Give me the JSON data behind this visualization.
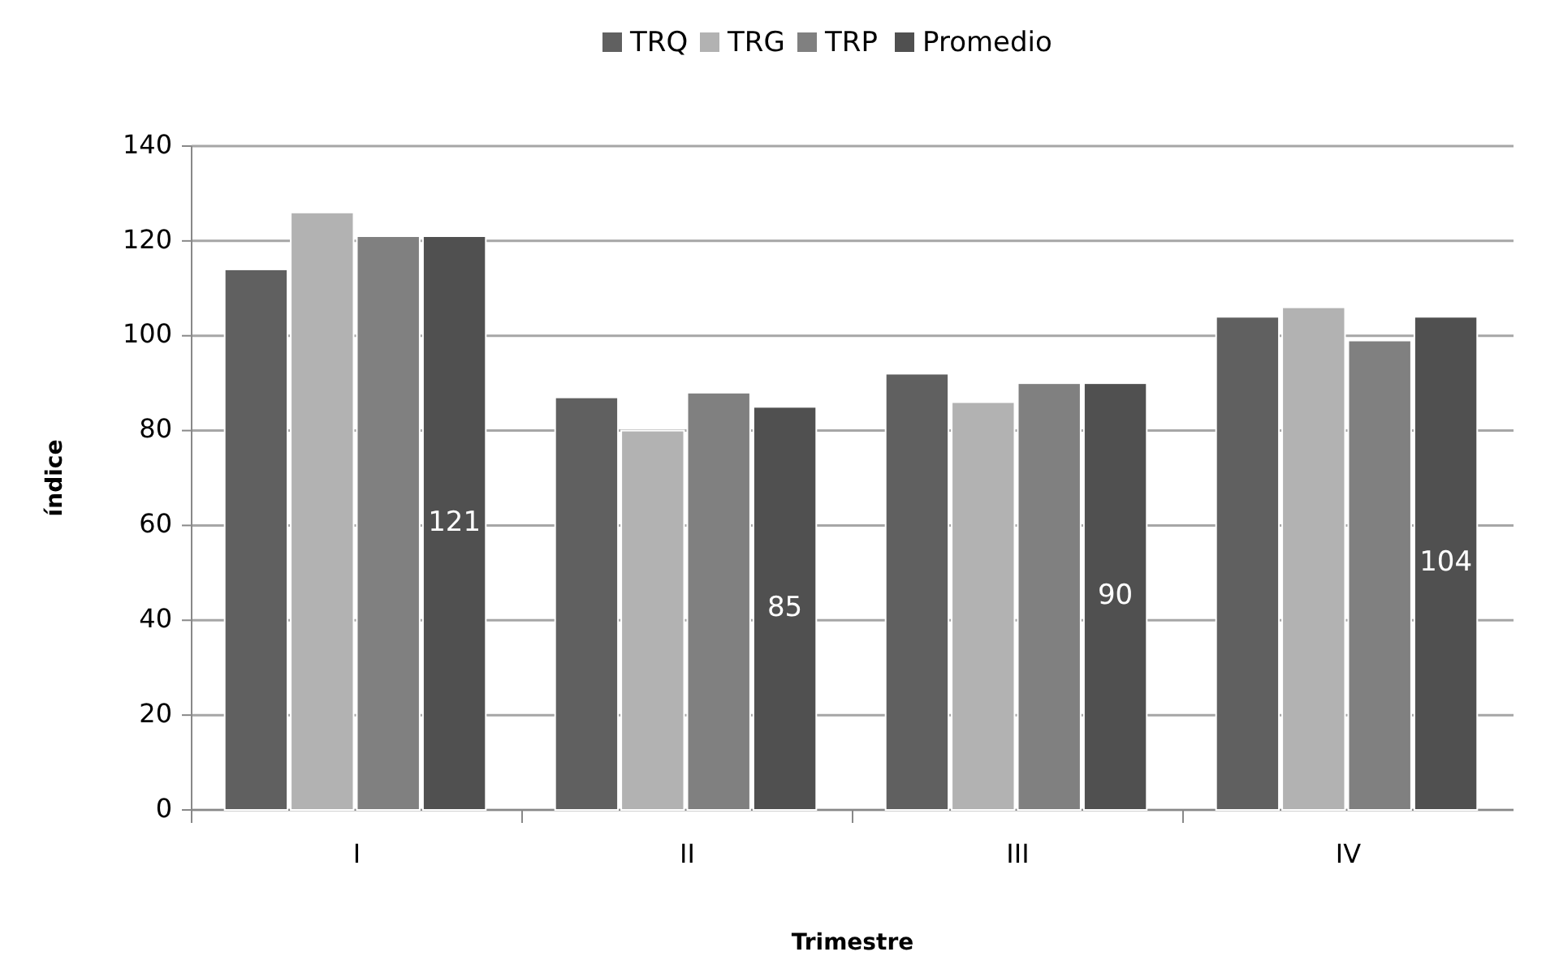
{
  "chart_data": {
    "type": "bar",
    "xlabel": "Trimestre",
    "ylabel": "índice",
    "categories": [
      "I",
      "II",
      "III",
      "IV"
    ],
    "series": [
      {
        "name": "TRQ",
        "color": "#606060",
        "values": [
          114,
          87,
          92,
          104
        ]
      },
      {
        "name": "TRG",
        "color": "#b2b2b2",
        "values": [
          126,
          80,
          86,
          106
        ]
      },
      {
        "name": "TRP",
        "color": "#808080",
        "values": [
          121,
          88,
          90,
          99
        ]
      },
      {
        "name": "Promedio",
        "color": "#505050",
        "values": [
          121,
          85,
          90,
          104
        ],
        "value_labels": [
          "121",
          "85",
          "90",
          "104"
        ]
      }
    ],
    "ylim": [
      0,
      140
    ],
    "yticks": [
      0,
      20,
      40,
      60,
      80,
      100,
      120,
      140
    ],
    "grid": "y",
    "legend": "top"
  }
}
